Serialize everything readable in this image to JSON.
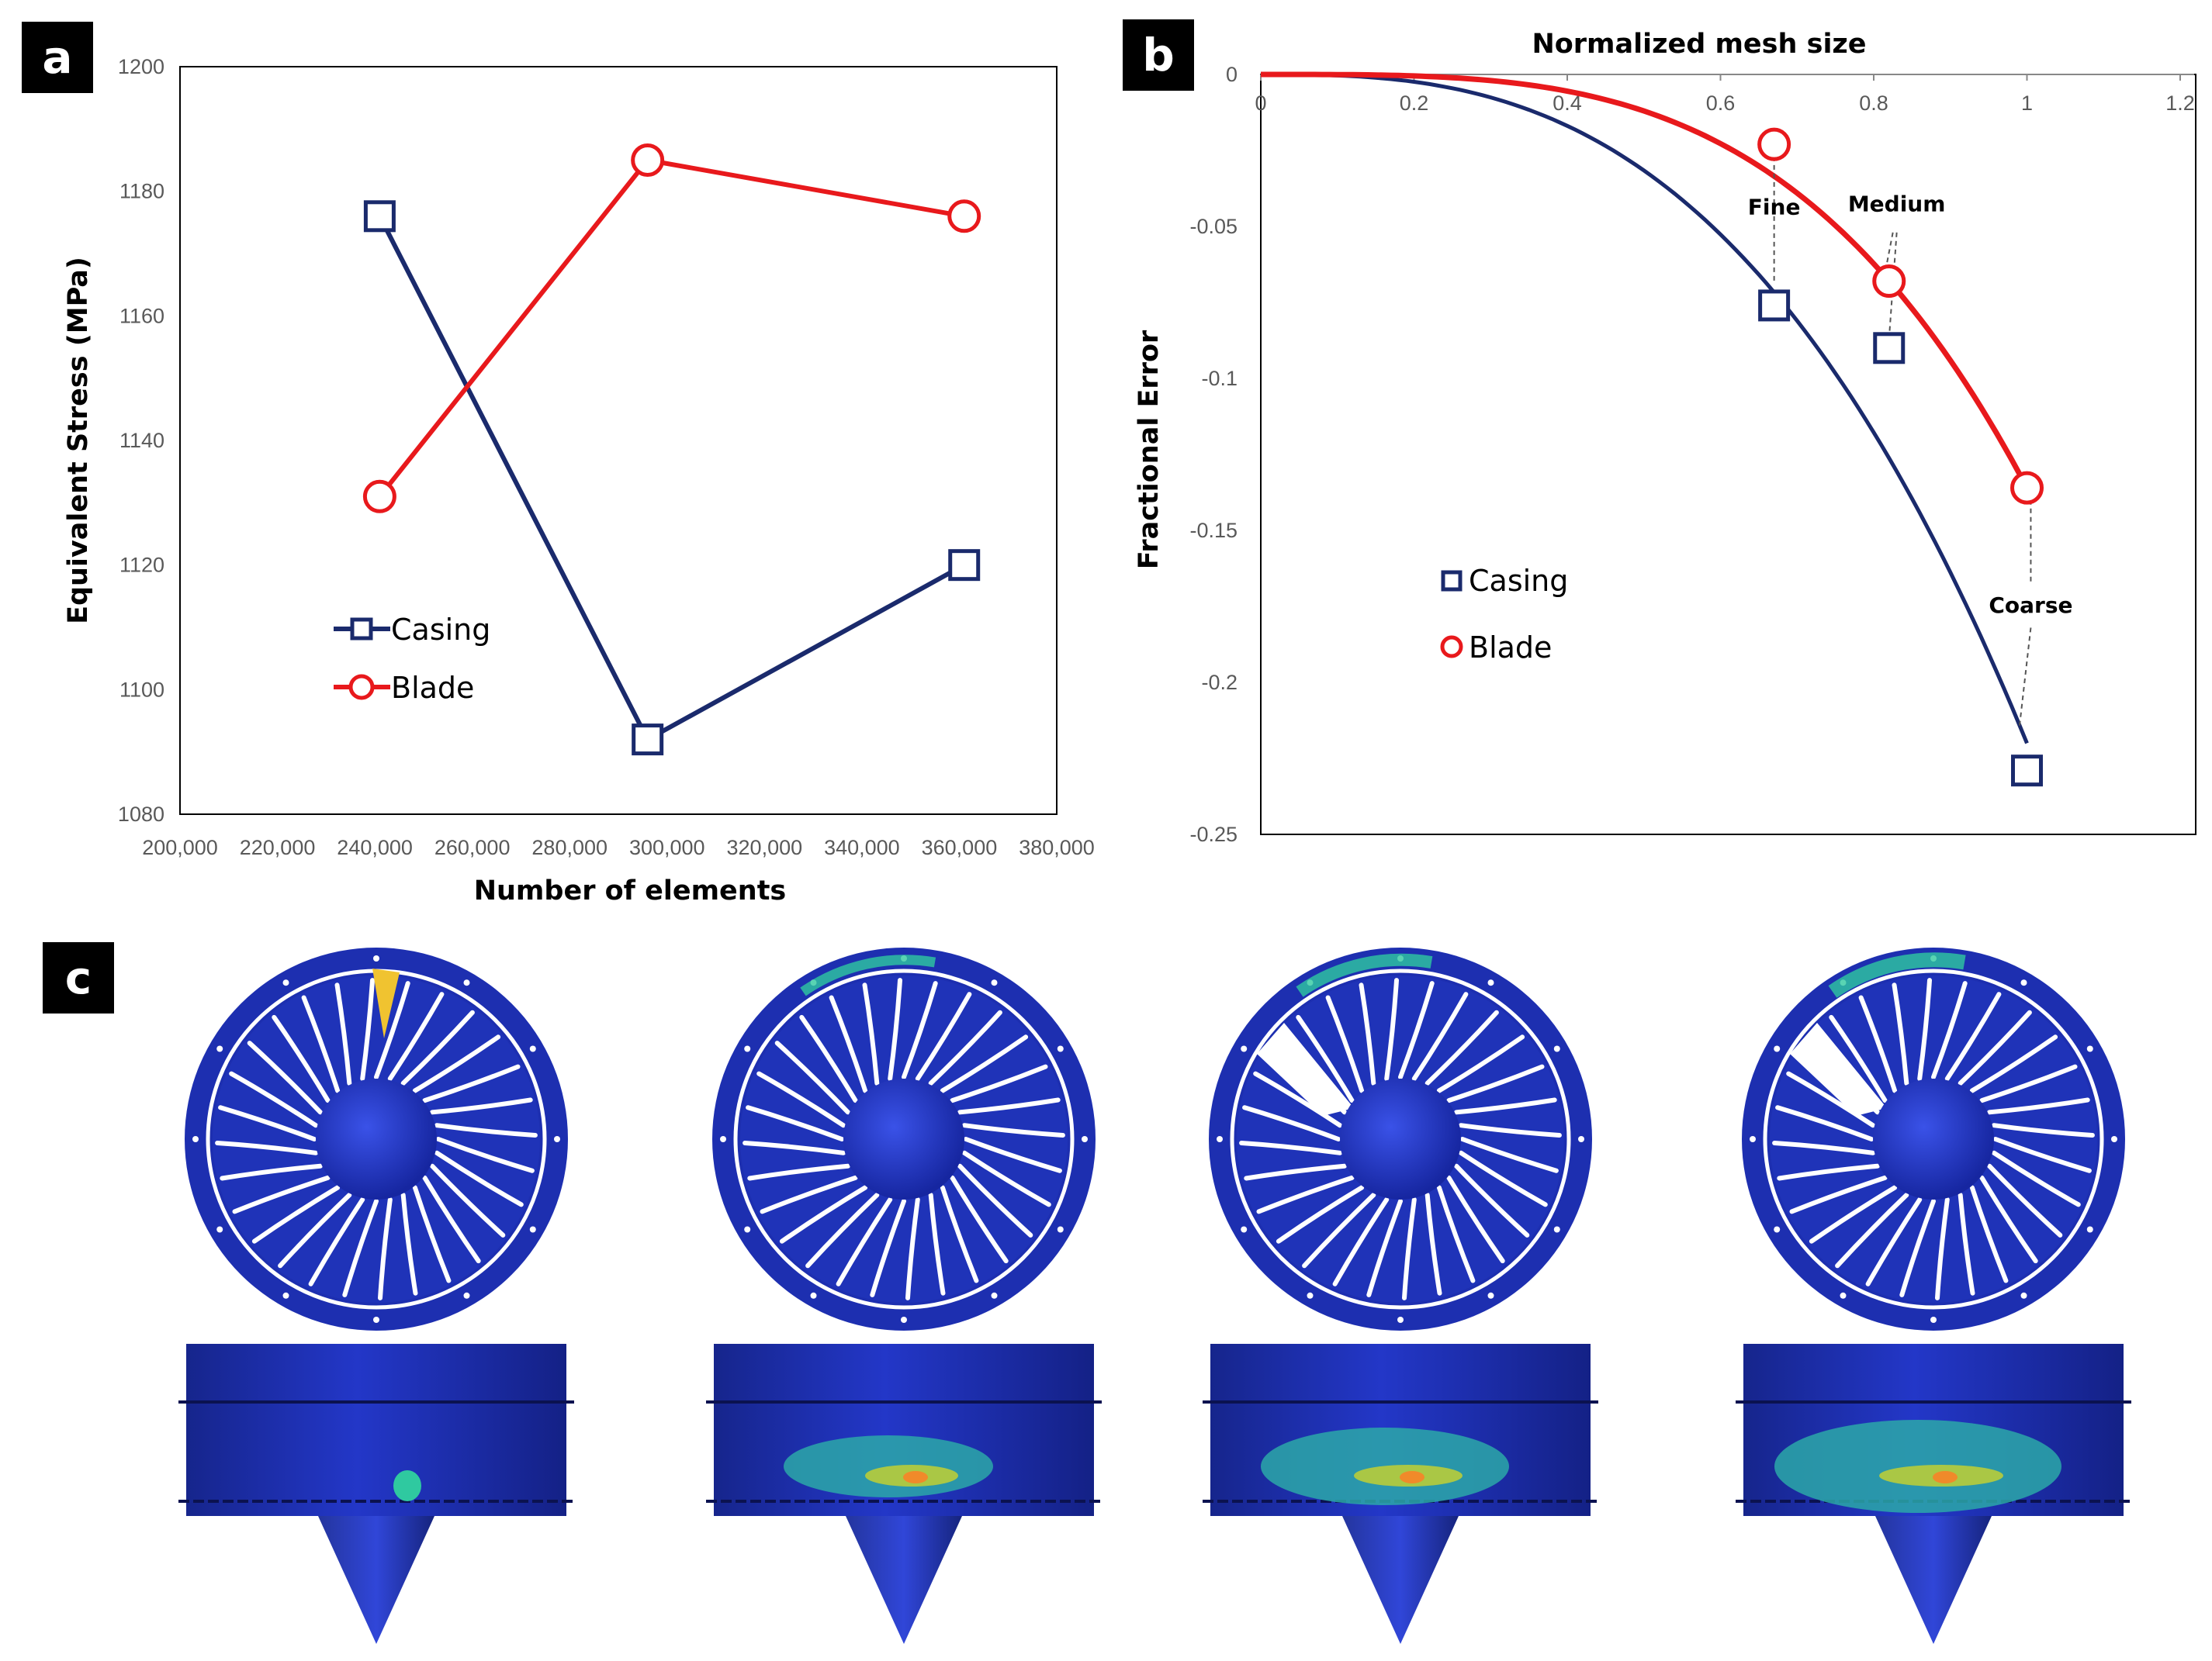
{
  "panels": {
    "a": "a",
    "b": "b",
    "c": "c"
  },
  "colors": {
    "casing": "#1a2a6c",
    "blade": "#e8191c",
    "fan_blue": "#1d2fb0"
  },
  "chart_data": [
    {
      "type": "line",
      "panel": "a",
      "xlabel": "Number of elements",
      "ylabel": "Equivalent Stress (MPa)",
      "xlim": [
        200000,
        380000
      ],
      "ylim": [
        1080,
        1200
      ],
      "x_ticks": [
        200000,
        220000,
        240000,
        260000,
        280000,
        300000,
        320000,
        340000,
        360000,
        380000
      ],
      "x_tick_labels": [
        "200,000",
        "220,000",
        "240,000",
        "260,000",
        "280,000",
        "300,000",
        "320,000",
        "340,000",
        "360,000",
        "380,000"
      ],
      "y_ticks": [
        1080,
        1100,
        1120,
        1140,
        1160,
        1180,
        1200
      ],
      "y_tick_labels": [
        "1080",
        "1100",
        "1120",
        "1140",
        "1160",
        "1180",
        "1200"
      ],
      "legend_position": "lower-left",
      "series": [
        {
          "name": "Casing",
          "marker": "square",
          "color": "#1a2a6c",
          "x": [
            241000,
            296000,
            361000
          ],
          "values": [
            1176,
            1092,
            1120
          ]
        },
        {
          "name": "Blade",
          "marker": "circle",
          "color": "#e8191c",
          "x": [
            241000,
            296000,
            361000
          ],
          "values": [
            1131,
            1185,
            1176
          ]
        }
      ]
    },
    {
      "type": "scatter",
      "panel": "b",
      "title": "Normalized mesh size",
      "xlabel": "Normalized mesh size",
      "ylabel": "Fractional Error",
      "xlim": [
        0,
        1.2
      ],
      "ylim": [
        -0.25,
        0
      ],
      "x_ticks": [
        0,
        0.2,
        0.4,
        0.6,
        0.8,
        1,
        1.2
      ],
      "x_tick_labels": [
        "0",
        "0.2",
        "0.4",
        "0.6",
        "0.8",
        "1",
        "1.2"
      ],
      "y_ticks": [
        0,
        -0.05,
        -0.1,
        -0.15,
        -0.2,
        -0.25
      ],
      "y_tick_labels": [
        "0",
        "-0.05",
        "-0.1",
        "-0.15",
        "-0.2",
        "-0.25"
      ],
      "legend_position": "center-left",
      "series": [
        {
          "name": "Casing",
          "marker": "square",
          "color": "#1a2a6c",
          "x": [
            0.67,
            0.82,
            1.0
          ],
          "values": [
            -0.076,
            -0.09,
            -0.229
          ],
          "fit_exponent": 2.8,
          "fit_at_1": -0.22
        },
        {
          "name": "Blade",
          "marker": "circle",
          "color": "#e8191c",
          "x": [
            0.67,
            0.82,
            1.0
          ],
          "values": [
            -0.023,
            -0.068,
            -0.136
          ],
          "fit_exponent": 3.5,
          "fit_at_1": -0.136
        }
      ],
      "annotations": [
        "Fine",
        "Medium",
        "Coarse"
      ]
    }
  ],
  "panel_c": {
    "description_free": true,
    "frames": 4
  }
}
